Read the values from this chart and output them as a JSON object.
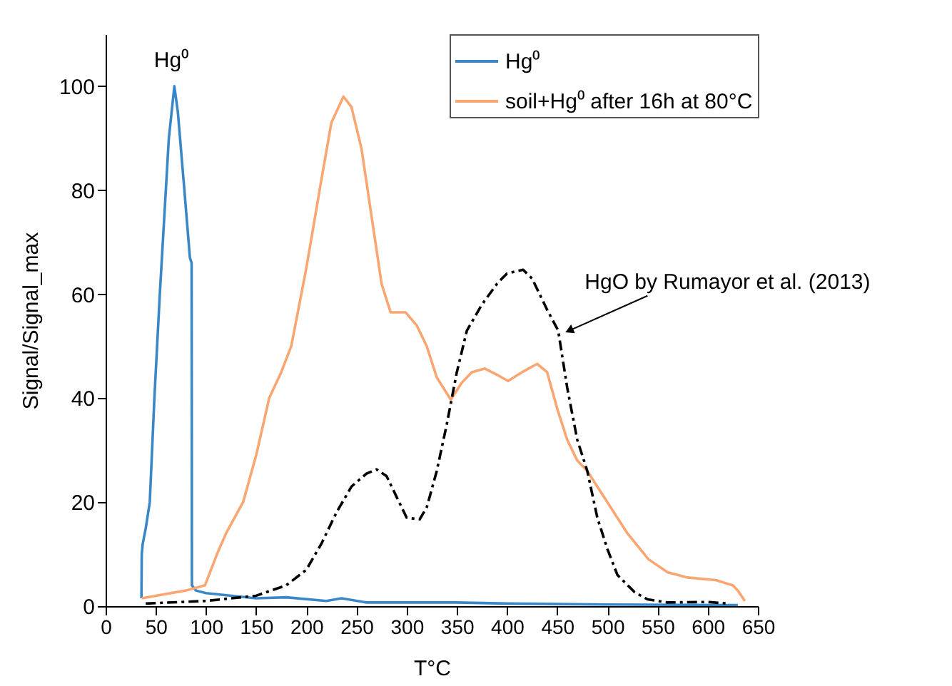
{
  "chart_data": {
    "type": "line",
    "xlabel": "T°C",
    "ylabel": "Signal/Signal_max",
    "xlim": [
      0,
      650
    ],
    "xticks": [
      0,
      50,
      100,
      150,
      200,
      250,
      300,
      350,
      400,
      450,
      500,
      550,
      600,
      650
    ],
    "ylim": [
      0,
      110
    ],
    "yticks": [
      0,
      20,
      40,
      60,
      80,
      100
    ],
    "grid": false,
    "legend": "top right",
    "annotations": [
      "Hg⁰",
      {
        "text": "HgO by Rumayor et al. (2013)",
        "x": 462,
        "y": 53
      }
    ],
    "series": [
      {
        "name": "Hg⁰",
        "color": "#3a87c8",
        "line_style": "solid",
        "x": [
          35.7,
          36,
          37,
          40,
          44,
          48.6,
          54,
          60,
          63,
          68.5,
          72,
          78.5,
          84,
          85.7,
          86,
          90,
          100,
          150,
          180,
          220,
          235,
          260,
          300,
          350,
          400,
          500,
          630
        ],
        "values": [
          1.5,
          10,
          12,
          15,
          20,
          40,
          60,
          80,
          90,
          100,
          95,
          80,
          67,
          66,
          4,
          3,
          2.5,
          1.5,
          1.7,
          1,
          1.5,
          0.7,
          0.7,
          0.7,
          0.5,
          0.3,
          0.2
        ]
      },
      {
        "name": "soil+Hg⁰ after 16h at 80°C",
        "color": "#f9a673",
        "line_style": "solid",
        "x": [
          36,
          50,
          80,
          99,
          111,
          120,
          137,
          150,
          163,
          175,
          185,
          200,
          215,
          225,
          237,
          245,
          255,
          265,
          275,
          284,
          299,
          310,
          320,
          330,
          344,
          355,
          365,
          378,
          390,
          401,
          415,
          430,
          440,
          450,
          460,
          470,
          480,
          500,
          520,
          541,
          560,
          580,
          608,
          625,
          630,
          637
        ],
        "values": [
          1.5,
          2,
          3,
          4,
          10,
          14,
          20,
          29,
          40,
          45,
          50,
          65,
          82,
          93,
          98,
          96,
          88,
          75,
          62,
          56.5,
          56.5,
          54,
          50,
          44,
          39.7,
          43,
          45,
          45.7,
          44.5,
          43.3,
          45,
          46.6,
          45,
          38,
          32,
          28,
          26,
          20,
          14,
          9,
          6.5,
          5.5,
          5,
          4,
          3,
          1
        ]
      },
      {
        "color": "#000000",
        "line_style": "dashed",
        "x": [
          40,
          100,
          150,
          180,
          200,
          215,
          230,
          245,
          260,
          270,
          280,
          290,
          300,
          313,
          320,
          330,
          340,
          350,
          360,
          375,
          390,
          400,
          416,
          425,
          440,
          451,
          460,
          470,
          480,
          490,
          500,
          510,
          527,
          540,
          560,
          600,
          620
        ],
        "values": [
          0.5,
          1,
          2,
          4,
          7,
          12,
          18,
          23,
          25.5,
          26.3,
          25,
          21,
          17,
          16.7,
          19,
          26,
          35,
          45,
          53,
          58,
          62,
          64,
          64.7,
          63,
          57,
          53,
          42,
          32,
          26,
          17,
          11,
          6,
          2.7,
          1.3,
          0.7,
          0.8,
          0.5
        ]
      }
    ]
  }
}
